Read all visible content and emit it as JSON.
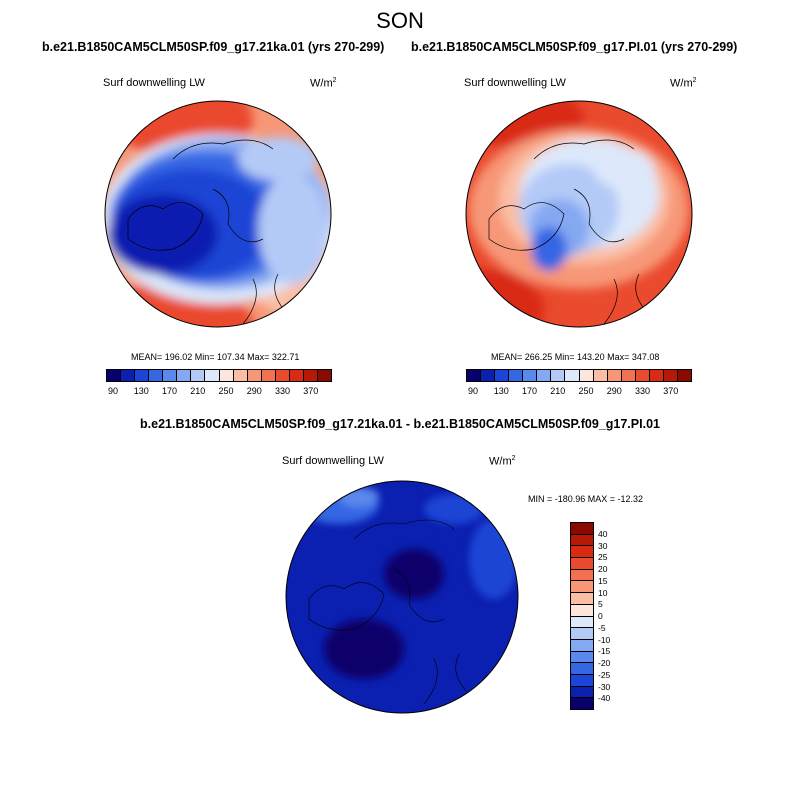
{
  "title": "SON",
  "panels": [
    {
      "subtitle": "b.e21.B1850CAM5CLM50SP.f09_g17.21ka.01 (yrs 270-299)",
      "variable": "Surf downwelling LW",
      "units_base": "W/m",
      "units_exp": "2",
      "stats": "MEAN= 196.02  Min= 107.34  Max= 322.71"
    },
    {
      "subtitle": "b.e21.B1850CAM5CLM50SP.f09_g17.PI.01 (yrs 270-299)",
      "variable": "Surf downwelling LW",
      "units_base": "W/m",
      "units_exp": "2",
      "stats": "MEAN= 266.25  Min= 143.20  Max= 347.08"
    }
  ],
  "diff_panel": {
    "subtitle": "b.e21.B1850CAM5CLM50SP.f09_g17.21ka.01 - b.e21.B1850CAM5CLM50SP.f09_g17.PI.01",
    "variable": "Surf downwelling LW",
    "units_base": "W/m",
    "units_exp": "2",
    "stats": "MIN = -180.96 MAX = -12.32"
  },
  "colorbar_main": {
    "colors": [
      "#08006b",
      "#0b1fb0",
      "#1c44d6",
      "#3566e4",
      "#5a88ec",
      "#85a8f2",
      "#b3caf7",
      "#dde8fb",
      "#fde6dc",
      "#fbbea4",
      "#f79777",
      "#f27150",
      "#ea4a2d",
      "#d92a13",
      "#b81808",
      "#8a0a00"
    ],
    "tick_labels": [
      "90",
      "130",
      "170",
      "210",
      "250",
      "290",
      "330",
      "370"
    ]
  },
  "colorbar_diff": {
    "colors": [
      "#8a0a00",
      "#b81808",
      "#d92a13",
      "#ea4a2d",
      "#f27150",
      "#f79777",
      "#fbbea4",
      "#fde6dc",
      "#dde8fb",
      "#b3caf7",
      "#85a8f2",
      "#5a88ec",
      "#3566e4",
      "#1c44d6",
      "#0b1fb0",
      "#08006b"
    ],
    "tick_labels": [
      "40",
      "30",
      "25",
      "20",
      "15",
      "10",
      "5",
      "0",
      "-5",
      "-10",
      "-15",
      "-20",
      "-25",
      "-30",
      "-40"
    ]
  }
}
